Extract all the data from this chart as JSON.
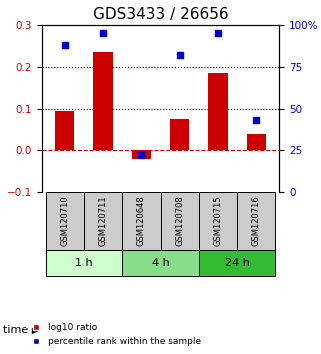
{
  "title": "GDS3433 / 26656",
  "samples": [
    "GSM120710",
    "GSM120711",
    "GSM120648",
    "GSM120708",
    "GSM120715",
    "GSM120716"
  ],
  "log10_ratio": [
    0.095,
    0.235,
    -0.02,
    0.075,
    0.185,
    0.04
  ],
  "percentile_rank": [
    88,
    95,
    22,
    82,
    95,
    43
  ],
  "left_ylim": [
    -0.1,
    0.3
  ],
  "right_ylim": [
    0,
    100
  ],
  "left_yticks": [
    -0.1,
    0.0,
    0.1,
    0.2,
    0.3
  ],
  "right_yticks": [
    0,
    25,
    50,
    75,
    100
  ],
  "right_yticklabels": [
    "0",
    "25",
    "50",
    "75",
    "100%"
  ],
  "hlines": [
    0.1,
    0.2
  ],
  "bar_color": "#cc0000",
  "scatter_color": "#0000cc",
  "zero_line_color": "#cc0000",
  "groups": [
    {
      "label": "1 h",
      "indices": [
        0,
        1
      ],
      "color": "#ccffcc"
    },
    {
      "label": "4 h",
      "indices": [
        2,
        3
      ],
      "color": "#88dd88"
    },
    {
      "label": "24 h",
      "indices": [
        4,
        5
      ],
      "color": "#33bb33"
    }
  ],
  "group_row_color": "#cccccc",
  "time_label": "time",
  "legend_bar_label": "log10 ratio",
  "legend_scatter_label": "percentile rank within the sample",
  "title_fontsize": 11,
  "tick_fontsize": 7.5,
  "bar_width": 0.5
}
